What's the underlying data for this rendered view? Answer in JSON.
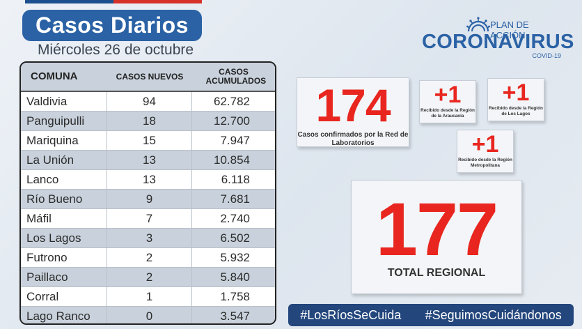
{
  "header": {
    "title": "Casos Diarios",
    "date": "Miércoles 26 de octubre"
  },
  "table": {
    "headers": {
      "comuna": "COMUNA",
      "casos_nuevos": "CASOS NUEVOS",
      "casos_acumulados": "CASOS ACUMULADOS"
    },
    "rows": [
      {
        "comuna": "Valdivia",
        "nuevos": "94",
        "acumulados": "62.782"
      },
      {
        "comuna": "Panguipulli",
        "nuevos": "18",
        "acumulados": "12.700"
      },
      {
        "comuna": "Mariquina",
        "nuevos": "15",
        "acumulados": "7.947"
      },
      {
        "comuna": "La Unión",
        "nuevos": "13",
        "acumulados": "10.854"
      },
      {
        "comuna": "Lanco",
        "nuevos": "13",
        "acumulados": "6.118"
      },
      {
        "comuna": "Río Bueno",
        "nuevos": "9",
        "acumulados": "7.681"
      },
      {
        "comuna": "Máfil",
        "nuevos": "7",
        "acumulados": "2.740"
      },
      {
        "comuna": "Los Lagos",
        "nuevos": "3",
        "acumulados": "6.502"
      },
      {
        "comuna": "Futrono",
        "nuevos": "2",
        "acumulados": "5.932"
      },
      {
        "comuna": "Paillaco",
        "nuevos": "2",
        "acumulados": "5.840"
      },
      {
        "comuna": "Corral",
        "nuevos": "1",
        "acumulados": "1.758"
      },
      {
        "comuna": "Lago Ranco",
        "nuevos": "0",
        "acumulados": "3.547"
      }
    ]
  },
  "logo": {
    "plan": "PLAN DE ACCIÓN",
    "name": "CORONAVIRUS",
    "sub": "COVID-19"
  },
  "cards": {
    "lab": {
      "value": "174",
      "caption": "Casos confirmados por la Red de Laboratorios"
    },
    "araucania": {
      "value": "+1",
      "caption": "Recibido desde la Región de la Araucanía"
    },
    "los_lagos": {
      "value": "+1",
      "caption": "Recibido desde la Región de Los Lagos"
    },
    "metropolitana": {
      "value": "+1",
      "caption": "Recibido desde la Región Metropolitana"
    },
    "total": {
      "value": "177",
      "caption": "TOTAL REGIONAL"
    }
  },
  "hashtags": [
    "#LosRíosSeCuida",
    "#SeguimosCuidándonos"
  ],
  "colors": {
    "brand_blue": "#2b62a5",
    "accent_red": "#e8261f",
    "bar_navy": "#23467c"
  }
}
